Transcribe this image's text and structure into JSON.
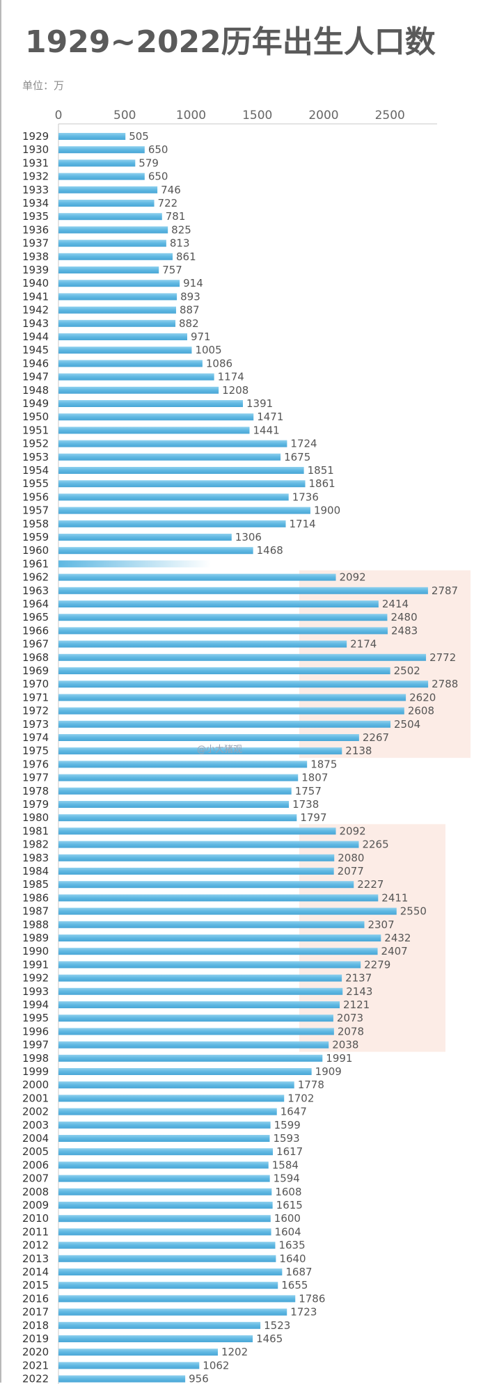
{
  "title": "1929~2022历年出生人口数",
  "unit_label": "单位：万",
  "watermark": "@小大猪观",
  "colors": {
    "bar": "#5fb8e2",
    "bar_light": "#a9dcf2",
    "highlight": "#fbe9e2",
    "title": "#5a5a5a"
  },
  "chart_data": {
    "type": "bar",
    "orientation": "horizontal",
    "title": "1929~2022历年出生人口数",
    "unit": "万",
    "xlim": [
      0,
      2800
    ],
    "xticks": [
      0,
      500,
      1000,
      1500,
      2000,
      2500
    ],
    "categories": [
      "1929",
      "1930",
      "1931",
      "1932",
      "1933",
      "1934",
      "1935",
      "1936",
      "1937",
      "1938",
      "1939",
      "1940",
      "1941",
      "1942",
      "1943",
      "1944",
      "1945",
      "1946",
      "1947",
      "1948",
      "1949",
      "1950",
      "1951",
      "1952",
      "1953",
      "1954",
      "1955",
      "1956",
      "1957",
      "1958",
      "1959",
      "1960",
      "1961",
      "1962",
      "1963",
      "1964",
      "1965",
      "1966",
      "1967",
      "1968",
      "1969",
      "1970",
      "1971",
      "1972",
      "1973",
      "1974",
      "1975",
      "1976",
      "1977",
      "1978",
      "1979",
      "1980",
      "1981",
      "1982",
      "1983",
      "1984",
      "1985",
      "1986",
      "1987",
      "1988",
      "1989",
      "1990",
      "1991",
      "1992",
      "1993",
      "1994",
      "1995",
      "1996",
      "1997",
      "1998",
      "1999",
      "2000",
      "2001",
      "2002",
      "2003",
      "2004",
      "2005",
      "2006",
      "2007",
      "2008",
      "2009",
      "2010",
      "2011",
      "2012",
      "2013",
      "2014",
      "2015",
      "2016",
      "2017",
      "2018",
      "2019",
      "2020",
      "2021",
      "2022"
    ],
    "values": [
      505,
      650,
      579,
      650,
      746,
      722,
      781,
      825,
      813,
      861,
      757,
      914,
      893,
      887,
      882,
      971,
      1005,
      1086,
      1174,
      1208,
      1391,
      1471,
      1441,
      1724,
      1675,
      1851,
      1861,
      1736,
      1900,
      1714,
      1306,
      1468,
      1150,
      2092,
      2787,
      2414,
      2480,
      2483,
      2174,
      2772,
      2502,
      2788,
      2620,
      2608,
      2504,
      2267,
      2138,
      1875,
      1807,
      1757,
      1738,
      1797,
      2092,
      2265,
      2080,
      2077,
      2227,
      2411,
      2550,
      2307,
      2432,
      2407,
      2279,
      2137,
      2143,
      2121,
      2073,
      2078,
      2038,
      1991,
      1909,
      1778,
      1702,
      1647,
      1599,
      1593,
      1617,
      1584,
      1594,
      1608,
      1615,
      1600,
      1604,
      1635,
      1640,
      1687,
      1655,
      1786,
      1723,
      1523,
      1465,
      1202,
      1062,
      956
    ],
    "value_labels": [
      "505",
      "650",
      "579",
      "650",
      "746",
      "722",
      "781",
      "825",
      "813",
      "861",
      "757",
      "914",
      "893",
      "887",
      "882",
      "971",
      "1005",
      "1086",
      "1174",
      "1208",
      "1391",
      "1471",
      "1441",
      "1724",
      "1675",
      "1851",
      "1861",
      "1736",
      "1900",
      "1714",
      "1306",
      "1468",
      "",
      "2092",
      "2787",
      "2414",
      "2480",
      "2483",
      "2174",
      "2772",
      "2502",
      "2788",
      "2620",
      "2608",
      "2504",
      "2267",
      "2138",
      "1875",
      "1807",
      "1757",
      "1738",
      "1797",
      "2092",
      "2265",
      "2080",
      "2077",
      "2227",
      "2411",
      "2550",
      "2307",
      "2432",
      "2407",
      "2279",
      "2137",
      "2143",
      "2121",
      "2073",
      "2078",
      "2038",
      "1991",
      "1909",
      "1778",
      "1702",
      "1647",
      "1599",
      "1593",
      "1617",
      "1584",
      "1594",
      "1608",
      "1615",
      "1600",
      "1604",
      "1635",
      "1640",
      "1687",
      "1655",
      "1786",
      "1723",
      "1523",
      "1465",
      "1202",
      "1062",
      "956"
    ],
    "highlight_ranges": [
      [
        "1962",
        "1975"
      ],
      [
        "1981",
        "1997"
      ]
    ]
  }
}
